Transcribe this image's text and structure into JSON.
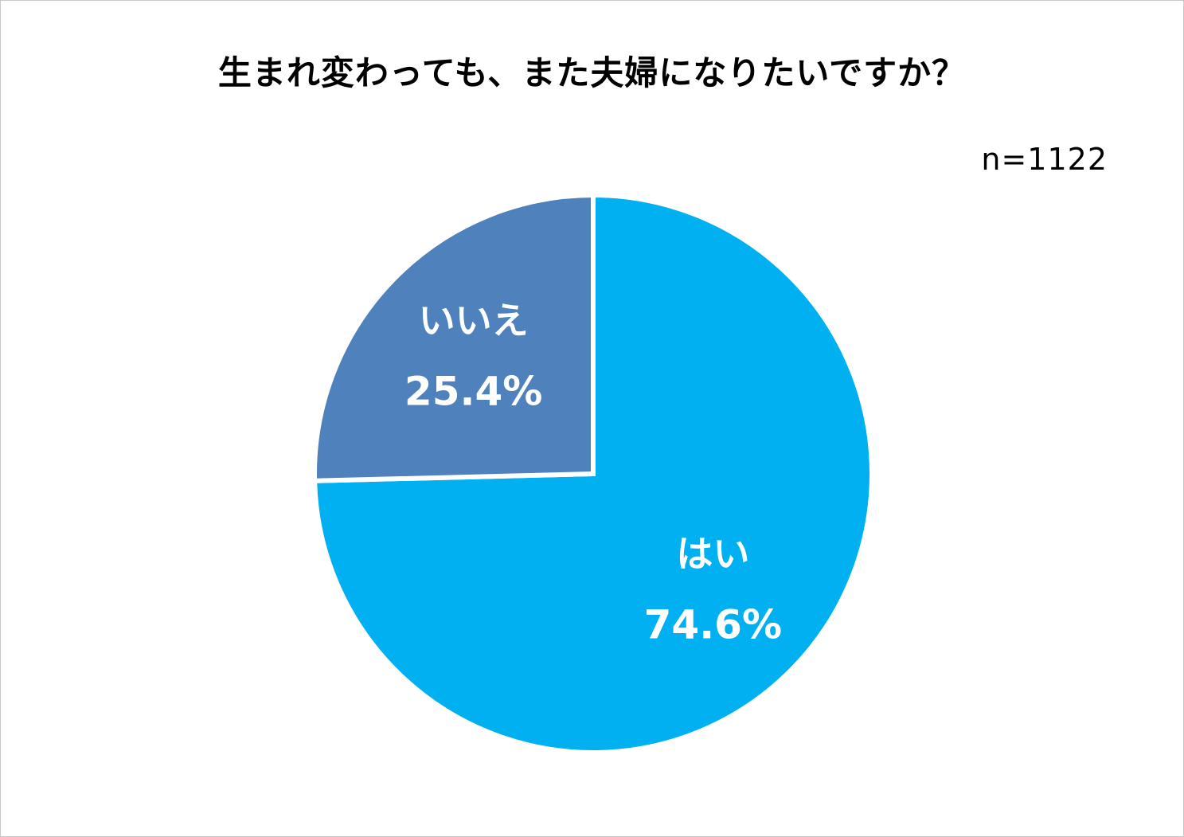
{
  "chart_data": {
    "type": "pie",
    "title": "生まれ変わっても、また夫婦になりたいですか？",
    "sample_size_label": "n=1122",
    "start_angle_deg": 0,
    "direction": "clockwise",
    "slices": [
      {
        "label": "はい",
        "value": 74.6,
        "value_label": "74.6%",
        "color": "#00b0f0"
      },
      {
        "label": "いいえ",
        "value": 25.4,
        "value_label": "25.4%",
        "color": "#4f81bd"
      }
    ],
    "slice_border_color": "#ffffff"
  }
}
